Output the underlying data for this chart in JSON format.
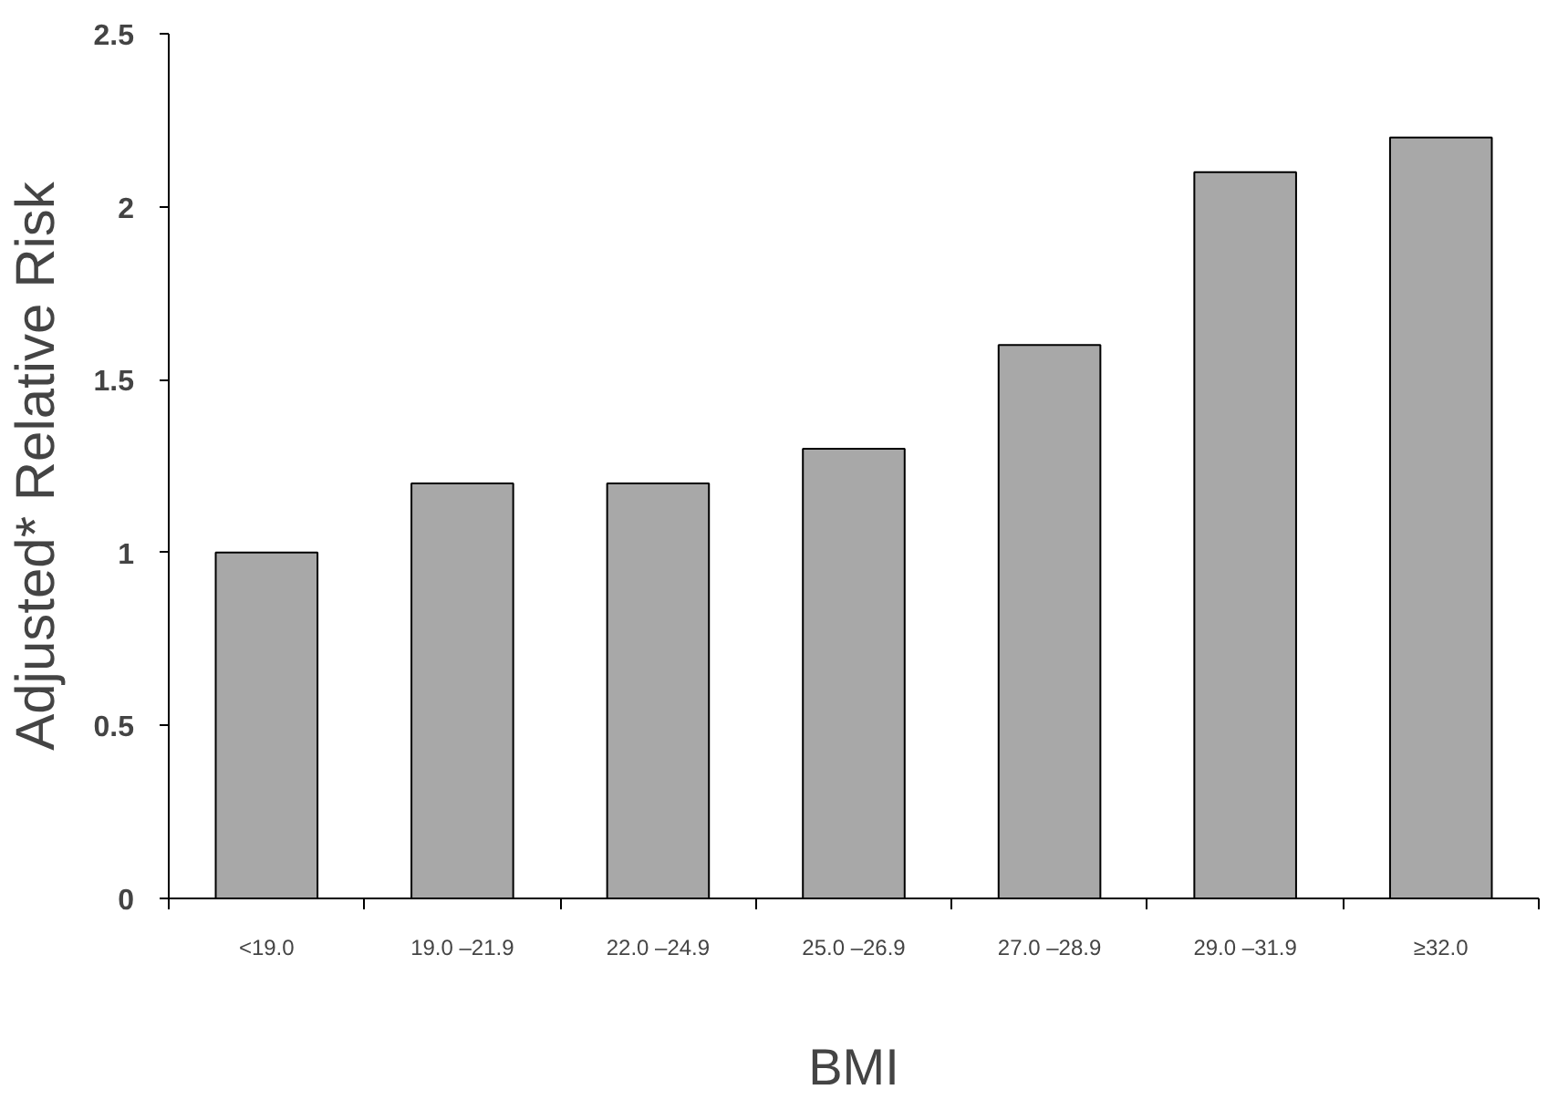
{
  "chart_data": {
    "type": "bar",
    "xlabel": "BMI",
    "ylabel": "Adjusted* Relative Risk",
    "categories": [
      "<19.0",
      "19.0 –21.9",
      "22.0 –24.9",
      "25.0 –26.9",
      "27.0 –28.9",
      "29.0 –31.9",
      "≥32.0"
    ],
    "values": [
      1.0,
      1.2,
      1.2,
      1.3,
      1.6,
      2.1,
      2.2
    ],
    "color": "#a8a8a8",
    "ylim": [
      0,
      2.5
    ],
    "yticks": [
      0,
      0.5,
      1,
      1.5,
      2,
      2.5
    ],
    "grid": false
  }
}
